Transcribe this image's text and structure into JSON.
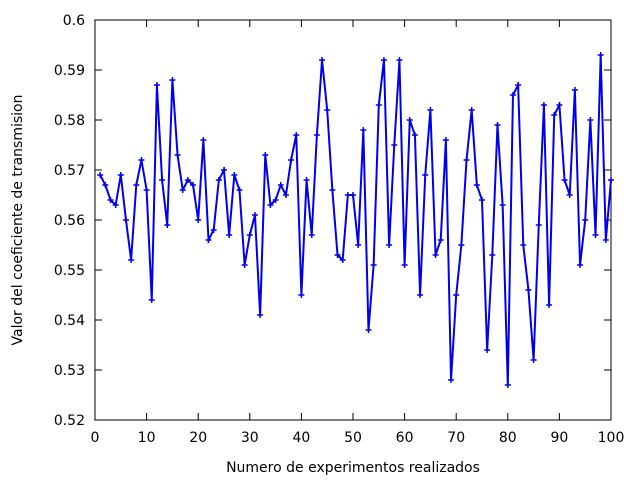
{
  "chart_data": {
    "type": "line",
    "title": "",
    "xlabel": "Numero de experimentos realizados",
    "ylabel": "Valor del coeficiente de transmision",
    "xlim": [
      0,
      100
    ],
    "ylim": [
      0.52,
      0.6
    ],
    "xticks": [
      0,
      10,
      20,
      30,
      40,
      50,
      60,
      70,
      80,
      90,
      100
    ],
    "yticks": [
      "0.52",
      "0.53",
      "0.54",
      "0.55",
      "0.56",
      "0.57",
      "0.58",
      "0.59",
      "0.6"
    ],
    "grid": false,
    "legend": "none",
    "series": [
      {
        "color": "#0000ee",
        "marker": "plus",
        "x": [
          1,
          2,
          3,
          4,
          5,
          6,
          7,
          8,
          9,
          10,
          11,
          12,
          13,
          14,
          15,
          16,
          17,
          18,
          19,
          20,
          21,
          22,
          23,
          24,
          25,
          26,
          27,
          28,
          29,
          30,
          31,
          32,
          33,
          34,
          35,
          36,
          37,
          38,
          39,
          40,
          41,
          42,
          43,
          44,
          45,
          46,
          47,
          48,
          49,
          50,
          51,
          52,
          53,
          54,
          55,
          56,
          57,
          58,
          59,
          60,
          61,
          62,
          63,
          64,
          65,
          66,
          67,
          68,
          69,
          70,
          71,
          72,
          73,
          74,
          75,
          76,
          77,
          78,
          79,
          80,
          81,
          82,
          83,
          84,
          85,
          86,
          87,
          88,
          89,
          90,
          91,
          92,
          93,
          94,
          95,
          96,
          97,
          98,
          99,
          100
        ],
        "y": [
          0.569,
          0.567,
          0.564,
          0.563,
          0.569,
          0.56,
          0.552,
          0.567,
          0.572,
          0.566,
          0.544,
          0.587,
          0.568,
          0.559,
          0.588,
          0.573,
          0.566,
          0.568,
          0.567,
          0.56,
          0.576,
          0.556,
          0.558,
          0.568,
          0.57,
          0.557,
          0.569,
          0.566,
          0.551,
          0.557,
          0.561,
          0.541,
          0.573,
          0.563,
          0.564,
          0.567,
          0.565,
          0.572,
          0.577,
          0.545,
          0.568,
          0.557,
          0.577,
          0.592,
          0.582,
          0.566,
          0.553,
          0.552,
          0.565,
          0.565,
          0.555,
          0.578,
          0.538,
          0.551,
          0.583,
          0.592,
          0.555,
          0.575,
          0.592,
          0.551,
          0.58,
          0.577,
          0.545,
          0.569,
          0.582,
          0.553,
          0.556,
          0.576,
          0.528,
          0.545,
          0.555,
          0.572,
          0.582,
          0.567,
          0.564,
          0.534,
          0.553,
          0.579,
          0.563,
          0.527,
          0.585,
          0.587,
          0.555,
          0.546,
          0.532,
          0.559,
          0.583,
          0.543,
          0.581,
          0.583,
          0.568,
          0.565,
          0.586,
          0.551,
          0.56,
          0.58,
          0.557,
          0.593,
          0.556,
          0.568
        ]
      }
    ]
  }
}
